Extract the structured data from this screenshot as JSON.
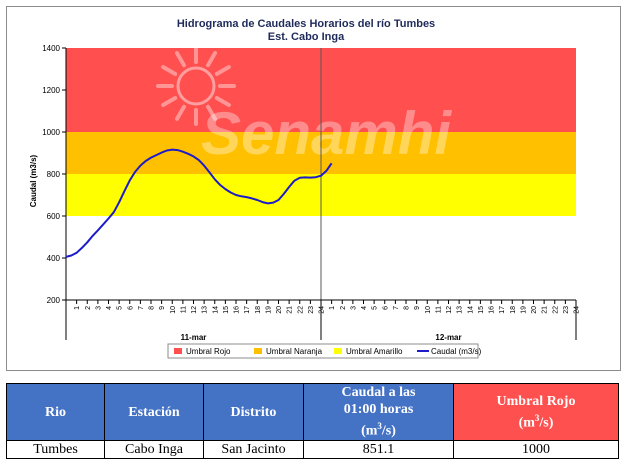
{
  "chart_data": {
    "type": "area",
    "title": "Hidrograma de Caudales Horarios del río Tumbes",
    "subtitle": "Est. Cabo Inga",
    "ylabel": "Caudal  (m3/s)",
    "ylim": [
      200,
      1400
    ],
    "yticks": [
      "200",
      "400",
      "600",
      "800",
      "1000",
      "1200",
      "1400"
    ],
    "day_labels": [
      "11-mar",
      "12-mar"
    ],
    "hour_labels": [
      "1",
      "2",
      "3",
      "4",
      "5",
      "6",
      "7",
      "8",
      "9",
      "10",
      "11",
      "12",
      "13",
      "14",
      "15",
      "16",
      "17",
      "18",
      "19",
      "20",
      "21",
      "22",
      "23",
      "24"
    ],
    "bands": [
      {
        "name": "Umbral Rojo",
        "from": 1000,
        "to": 1400,
        "color": "#ff4f4f"
      },
      {
        "name": "Umbral Naranja",
        "from": 800,
        "to": 1000,
        "color": "#ffc000"
      },
      {
        "name": "Umbral Amarillo",
        "from": 600,
        "to": 800,
        "color": "#ffff00"
      }
    ],
    "series": [
      {
        "name": "Caudal (m3/s)",
        "color": "#1c1cc8",
        "x": [
          0,
          0.5,
          1,
          1.5,
          2,
          2.5,
          3,
          3.5,
          4,
          4.5,
          5,
          5.5,
          6,
          6.5,
          7,
          7.5,
          8,
          8.5,
          9,
          9.5,
          10,
          10.5,
          11,
          11.5,
          12,
          12.5,
          13,
          13.5,
          14,
          14.5,
          15,
          15.5,
          16,
          16.5,
          17,
          17.5,
          18,
          18.5,
          19,
          19.5,
          20,
          20.5,
          21,
          21.5,
          22,
          22.5,
          23,
          23.5,
          24,
          24.5,
          25
        ],
        "values": [
          405,
          412,
          425,
          448,
          475,
          505,
          532,
          560,
          588,
          618,
          665,
          718,
          770,
          810,
          840,
          862,
          878,
          890,
          902,
          912,
          916,
          914,
          906,
          896,
          884,
          866,
          840,
          808,
          775,
          748,
          728,
          712,
          700,
          694,
          690,
          684,
          676,
          666,
          660,
          664,
          676,
          705,
          738,
          768,
          782,
          784,
          783,
          785,
          792,
          815,
          851.1
        ]
      }
    ],
    "watermark": "Senamhi",
    "legend_position": "bottom"
  },
  "table": {
    "headers": [
      {
        "text": "Rio"
      },
      {
        "text": "Estación"
      },
      {
        "text": "Distrito"
      },
      {
        "line1": "Caudal a las",
        "line2": "01:00 horas",
        "line3a": "(m",
        "sup": "3",
        "line3b": "/s)"
      },
      {
        "line1": "Umbral Rojo",
        "line2a": "(m",
        "sup": "3",
        "line2b": "/s)"
      }
    ],
    "row": [
      "Tumbes",
      "Cabo Inga",
      "San Jacinto",
      "851.1",
      "1000"
    ]
  }
}
